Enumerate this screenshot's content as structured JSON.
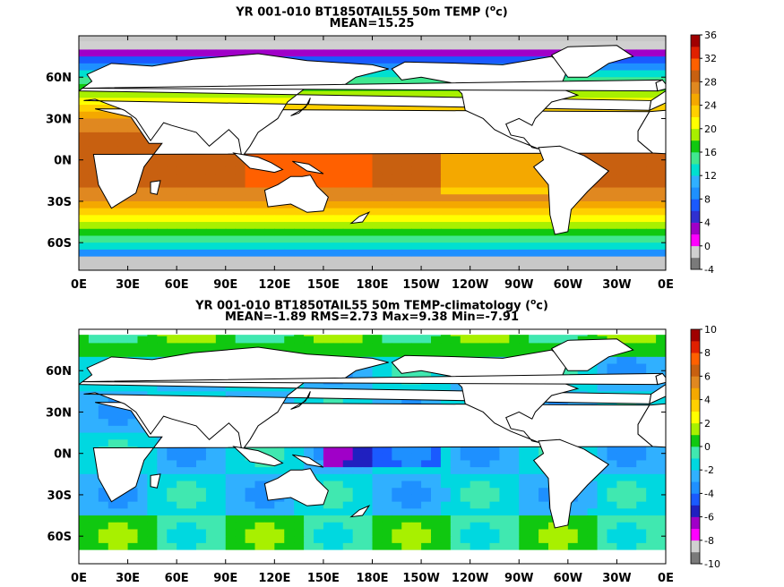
{
  "colors": {
    "land": "#ffffff",
    "ice": "#c8c8c8",
    "coast": "#000000"
  },
  "chart_data": [
    {
      "type": "heatmap",
      "title_main": "YR 001-010 BT1850TAIL55 50m TEMP (",
      "title_unit": "o",
      "title_tail": "c)",
      "subtitle": "MEAN=15.25",
      "x_ticks": [
        "0E",
        "30E",
        "60E",
        "90E",
        "120E",
        "150E",
        "180E",
        "150W",
        "120W",
        "90W",
        "60W",
        "30W",
        "0E"
      ],
      "y_ticks": [
        "60N",
        "30N",
        "0N",
        "30S",
        "60S"
      ],
      "xlim": [
        0,
        360
      ],
      "ylim": [
        -80,
        90
      ],
      "colorbar_ticks": [
        "36",
        "32",
        "28",
        "24",
        "20",
        "16",
        "12",
        "8",
        "4",
        "0",
        "-4"
      ],
      "colorbar_range": [
        -4,
        36
      ],
      "colorbar_colors": [
        "#7a7a7a",
        "#d0d0d0",
        "#ff00ff",
        "#a000c8",
        "#3030d0",
        "#1a5aff",
        "#1e90ff",
        "#30b0ff",
        "#00e0d0",
        "#40e890",
        "#10c810",
        "#a8f000",
        "#ffff00",
        "#ffd000",
        "#f4a800",
        "#e08820",
        "#c86010",
        "#ff6000",
        "#e02000",
        "#a00000"
      ],
      "mean": 15.25
    },
    {
      "type": "heatmap",
      "title_main": "YR 001-010 BT1850TAIL55 50m TEMP-climatology (",
      "title_unit": "o",
      "title_tail": "c)",
      "subtitle": "MEAN=-1.89   RMS=2.73   Max=9.38   Min=-7.91",
      "x_ticks": [
        "0E",
        "30E",
        "60E",
        "90E",
        "120E",
        "150E",
        "180E",
        "150W",
        "120W",
        "90W",
        "60W",
        "30W",
        "0E"
      ],
      "y_ticks": [
        "60N",
        "30N",
        "0N",
        "30S",
        "60S"
      ],
      "xlim": [
        0,
        360
      ],
      "ylim": [
        -80,
        90
      ],
      "colorbar_ticks": [
        "10",
        "8",
        "6",
        "4",
        "2",
        "0",
        "-2",
        "-4",
        "-6",
        "-8",
        "-10"
      ],
      "colorbar_range": [
        -10,
        10
      ],
      "colorbar_colors": [
        "#7a7a7a",
        "#d0d0d0",
        "#ff00ff",
        "#a000c8",
        "#2020c0",
        "#1a5aff",
        "#1e90ff",
        "#30b0ff",
        "#00d8e0",
        "#40e8b0",
        "#10c810",
        "#a8f000",
        "#ffff00",
        "#ffd000",
        "#f4a800",
        "#e08820",
        "#c86010",
        "#ff6000",
        "#e02000",
        "#a00000"
      ],
      "mean": -1.89,
      "rms": 2.73,
      "max": 9.38,
      "min": -7.91
    }
  ]
}
